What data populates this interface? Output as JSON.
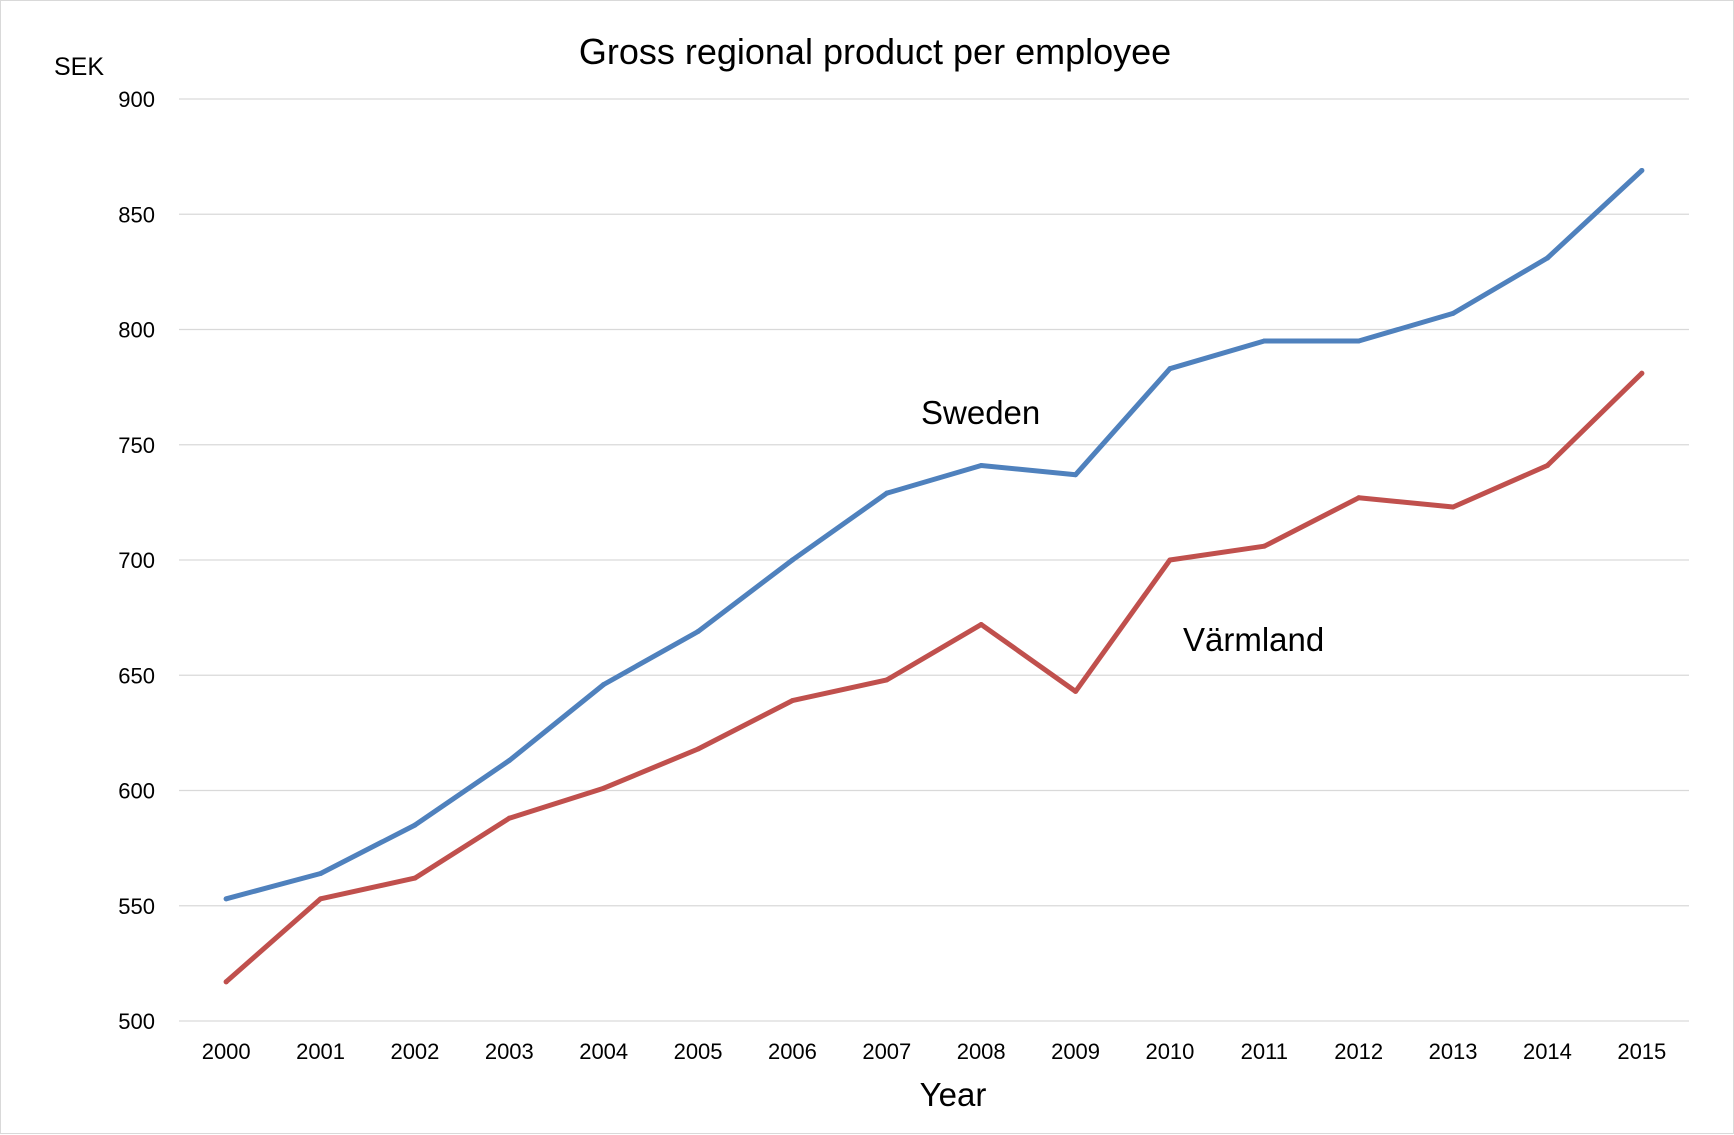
{
  "chart_data": {
    "type": "line",
    "title": "Gross regional product per employee",
    "xlabel": "Year",
    "ylabel": "SEK",
    "ylim": [
      500,
      900
    ],
    "y_ticks": [
      500,
      550,
      600,
      650,
      700,
      750,
      800,
      850,
      900
    ],
    "grid": true,
    "legend": "none (series labelled directly on the plot)",
    "categories": [
      "2000",
      "2001",
      "2002",
      "2003",
      "2004",
      "2005",
      "2006",
      "2007",
      "2008",
      "2009",
      "2010",
      "2011",
      "2012",
      "2013",
      "2014",
      "2015"
    ],
    "series": [
      {
        "name": "Sweden",
        "color": "#4f81bd",
        "values": [
          553,
          564,
          585,
          613,
          646,
          669,
          700,
          729,
          741,
          737,
          783,
          795,
          795,
          807,
          831,
          869
        ]
      },
      {
        "name": "Värmland",
        "color": "#c0504d",
        "values": [
          517,
          553,
          562,
          588,
          601,
          618,
          639,
          648,
          672,
          643,
          700,
          706,
          727,
          723,
          741,
          781
        ]
      }
    ]
  }
}
